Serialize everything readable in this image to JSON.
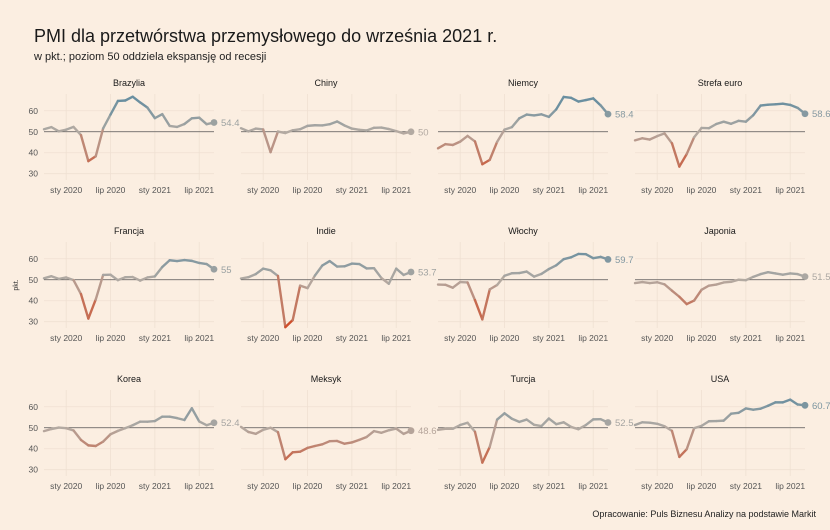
{
  "header": {
    "title": "PMI dla przetwórstwa przemysłowego do września 2021 r.",
    "subtitle": "w pkt.; poziom 50 oddziela ekspansję od recesji"
  },
  "footer": {
    "caption": "Opracowanie: Puls Biznesu Analizy na podstawie Markit"
  },
  "colors": {
    "background": "#fbeee1",
    "expansion": "#6a8fa0",
    "neutral": "#b3aaa2",
    "recession": "#cf4f2c",
    "reference_line": "#555555"
  },
  "chart_data": {
    "type": "line",
    "ylabel": "pkt.",
    "ylim": [
      27,
      68
    ],
    "y_ticks": [
      30,
      40,
      50,
      60
    ],
    "reference_value": 50,
    "x_ticks": [
      "sty 2020",
      "lip 2020",
      "sty 2021",
      "lip 2021"
    ],
    "x": [
      "2019-10",
      "2019-11",
      "2019-12",
      "2020-01",
      "2020-02",
      "2020-03",
      "2020-04",
      "2020-05",
      "2020-06",
      "2020-07",
      "2020-08",
      "2020-09",
      "2020-10",
      "2020-11",
      "2020-12",
      "2021-01",
      "2021-02",
      "2021-03",
      "2021-04",
      "2021-05",
      "2021-06",
      "2021-07",
      "2021-08",
      "2021-09"
    ],
    "grid": true,
    "facets": [
      {
        "name": "Brazylia",
        "last_label": "54.4",
        "values": [
          51.2,
          52.2,
          50.2,
          51.0,
          52.3,
          48.4,
          36.0,
          38.3,
          51.6,
          58.2,
          64.7,
          64.9,
          66.7,
          64.0,
          61.5,
          56.5,
          58.4,
          52.8,
          52.3,
          53.7,
          56.4,
          56.7,
          53.6,
          54.4
        ]
      },
      {
        "name": "Chiny",
        "last_label": "50",
        "values": [
          51.7,
          50.2,
          51.5,
          51.1,
          40.3,
          50.1,
          49.4,
          50.7,
          51.2,
          52.8,
          53.1,
          53.0,
          53.6,
          54.9,
          53.0,
          51.5,
          50.9,
          50.6,
          51.9,
          52.0,
          51.3,
          50.3,
          49.2,
          50.0
        ]
      },
      {
        "name": "Niemcy",
        "last_label": "58.4",
        "values": [
          42.1,
          44.1,
          43.7,
          45.3,
          48.0,
          45.4,
          34.5,
          36.6,
          45.2,
          51.0,
          52.2,
          56.4,
          58.2,
          57.8,
          58.3,
          57.1,
          60.7,
          66.6,
          66.2,
          64.4,
          65.1,
          65.9,
          62.6,
          58.4
        ]
      },
      {
        "name": "Strefa euro",
        "last_label": "58.6",
        "values": [
          45.9,
          46.9,
          46.3,
          47.9,
          49.2,
          44.5,
          33.4,
          39.4,
          47.4,
          51.8,
          51.7,
          53.7,
          54.8,
          53.8,
          55.2,
          54.8,
          57.9,
          62.5,
          62.9,
          63.1,
          63.4,
          62.8,
          61.4,
          58.6
        ]
      },
      {
        "name": "Francja",
        "last_label": "55",
        "values": [
          50.7,
          51.7,
          50.4,
          51.1,
          49.8,
          43.2,
          31.5,
          40.6,
          52.3,
          52.4,
          49.8,
          51.2,
          51.3,
          49.6,
          51.1,
          51.6,
          56.1,
          59.3,
          58.9,
          59.4,
          59.0,
          58.0,
          57.5,
          55.0
        ]
      },
      {
        "name": "Indie",
        "last_label": "53.7",
        "values": [
          50.6,
          51.2,
          52.7,
          55.3,
          54.5,
          51.8,
          27.4,
          30.8,
          47.2,
          46.0,
          52.0,
          56.8,
          58.9,
          56.3,
          56.4,
          57.7,
          57.5,
          55.4,
          55.5,
          50.8,
          48.1,
          55.3,
          52.3,
          53.7
        ]
      },
      {
        "name": "Włochy",
        "last_label": "59.7",
        "values": [
          47.7,
          47.6,
          46.2,
          48.9,
          48.7,
          40.3,
          31.1,
          45.4,
          47.5,
          51.9,
          53.1,
          53.2,
          53.9,
          51.5,
          52.8,
          55.1,
          56.9,
          59.8,
          60.7,
          62.3,
          62.2,
          60.3,
          60.9,
          59.7
        ]
      },
      {
        "name": "Japonia",
        "last_label": "51.5",
        "values": [
          48.4,
          48.9,
          48.4,
          48.8,
          47.8,
          44.8,
          41.9,
          38.4,
          40.1,
          45.2,
          47.2,
          47.7,
          48.7,
          49.0,
          50.0,
          49.8,
          51.4,
          52.7,
          53.6,
          53.0,
          52.4,
          53.0,
          52.7,
          51.5
        ]
      },
      {
        "name": "Korea",
        "last_label": "52.4",
        "values": [
          48.4,
          49.4,
          50.1,
          49.8,
          48.7,
          44.2,
          41.6,
          41.3,
          43.4,
          46.9,
          48.5,
          49.8,
          51.2,
          52.9,
          52.9,
          53.2,
          55.3,
          55.3,
          54.6,
          53.7,
          59.3,
          53.0,
          51.2,
          52.4
        ]
      },
      {
        "name": "Meksyk",
        "last_label": "48.6",
        "values": [
          50.4,
          48.0,
          47.1,
          49.0,
          50.0,
          47.9,
          35.0,
          38.3,
          38.6,
          40.4,
          41.3,
          42.1,
          43.6,
          43.7,
          42.4,
          43.0,
          44.2,
          45.6,
          48.4,
          47.6,
          48.8,
          49.6,
          47.1,
          48.6
        ]
      },
      {
        "name": "Turcja",
        "last_label": "52.5",
        "values": [
          49.0,
          49.5,
          49.5,
          51.3,
          52.4,
          48.1,
          33.4,
          40.9,
          53.9,
          56.9,
          54.3,
          52.8,
          53.9,
          51.4,
          50.8,
          54.4,
          51.7,
          52.6,
          50.4,
          49.3,
          51.3,
          54.0,
          54.1,
          52.5
        ]
      },
      {
        "name": "USA",
        "last_label": "60.7",
        "values": [
          51.3,
          52.6,
          52.4,
          51.9,
          50.7,
          48.5,
          36.1,
          39.8,
          49.8,
          50.9,
          53.1,
          53.2,
          53.4,
          56.7,
          57.1,
          59.2,
          58.6,
          59.1,
          60.5,
          62.1,
          62.1,
          63.4,
          61.1,
          60.7
        ]
      }
    ]
  }
}
